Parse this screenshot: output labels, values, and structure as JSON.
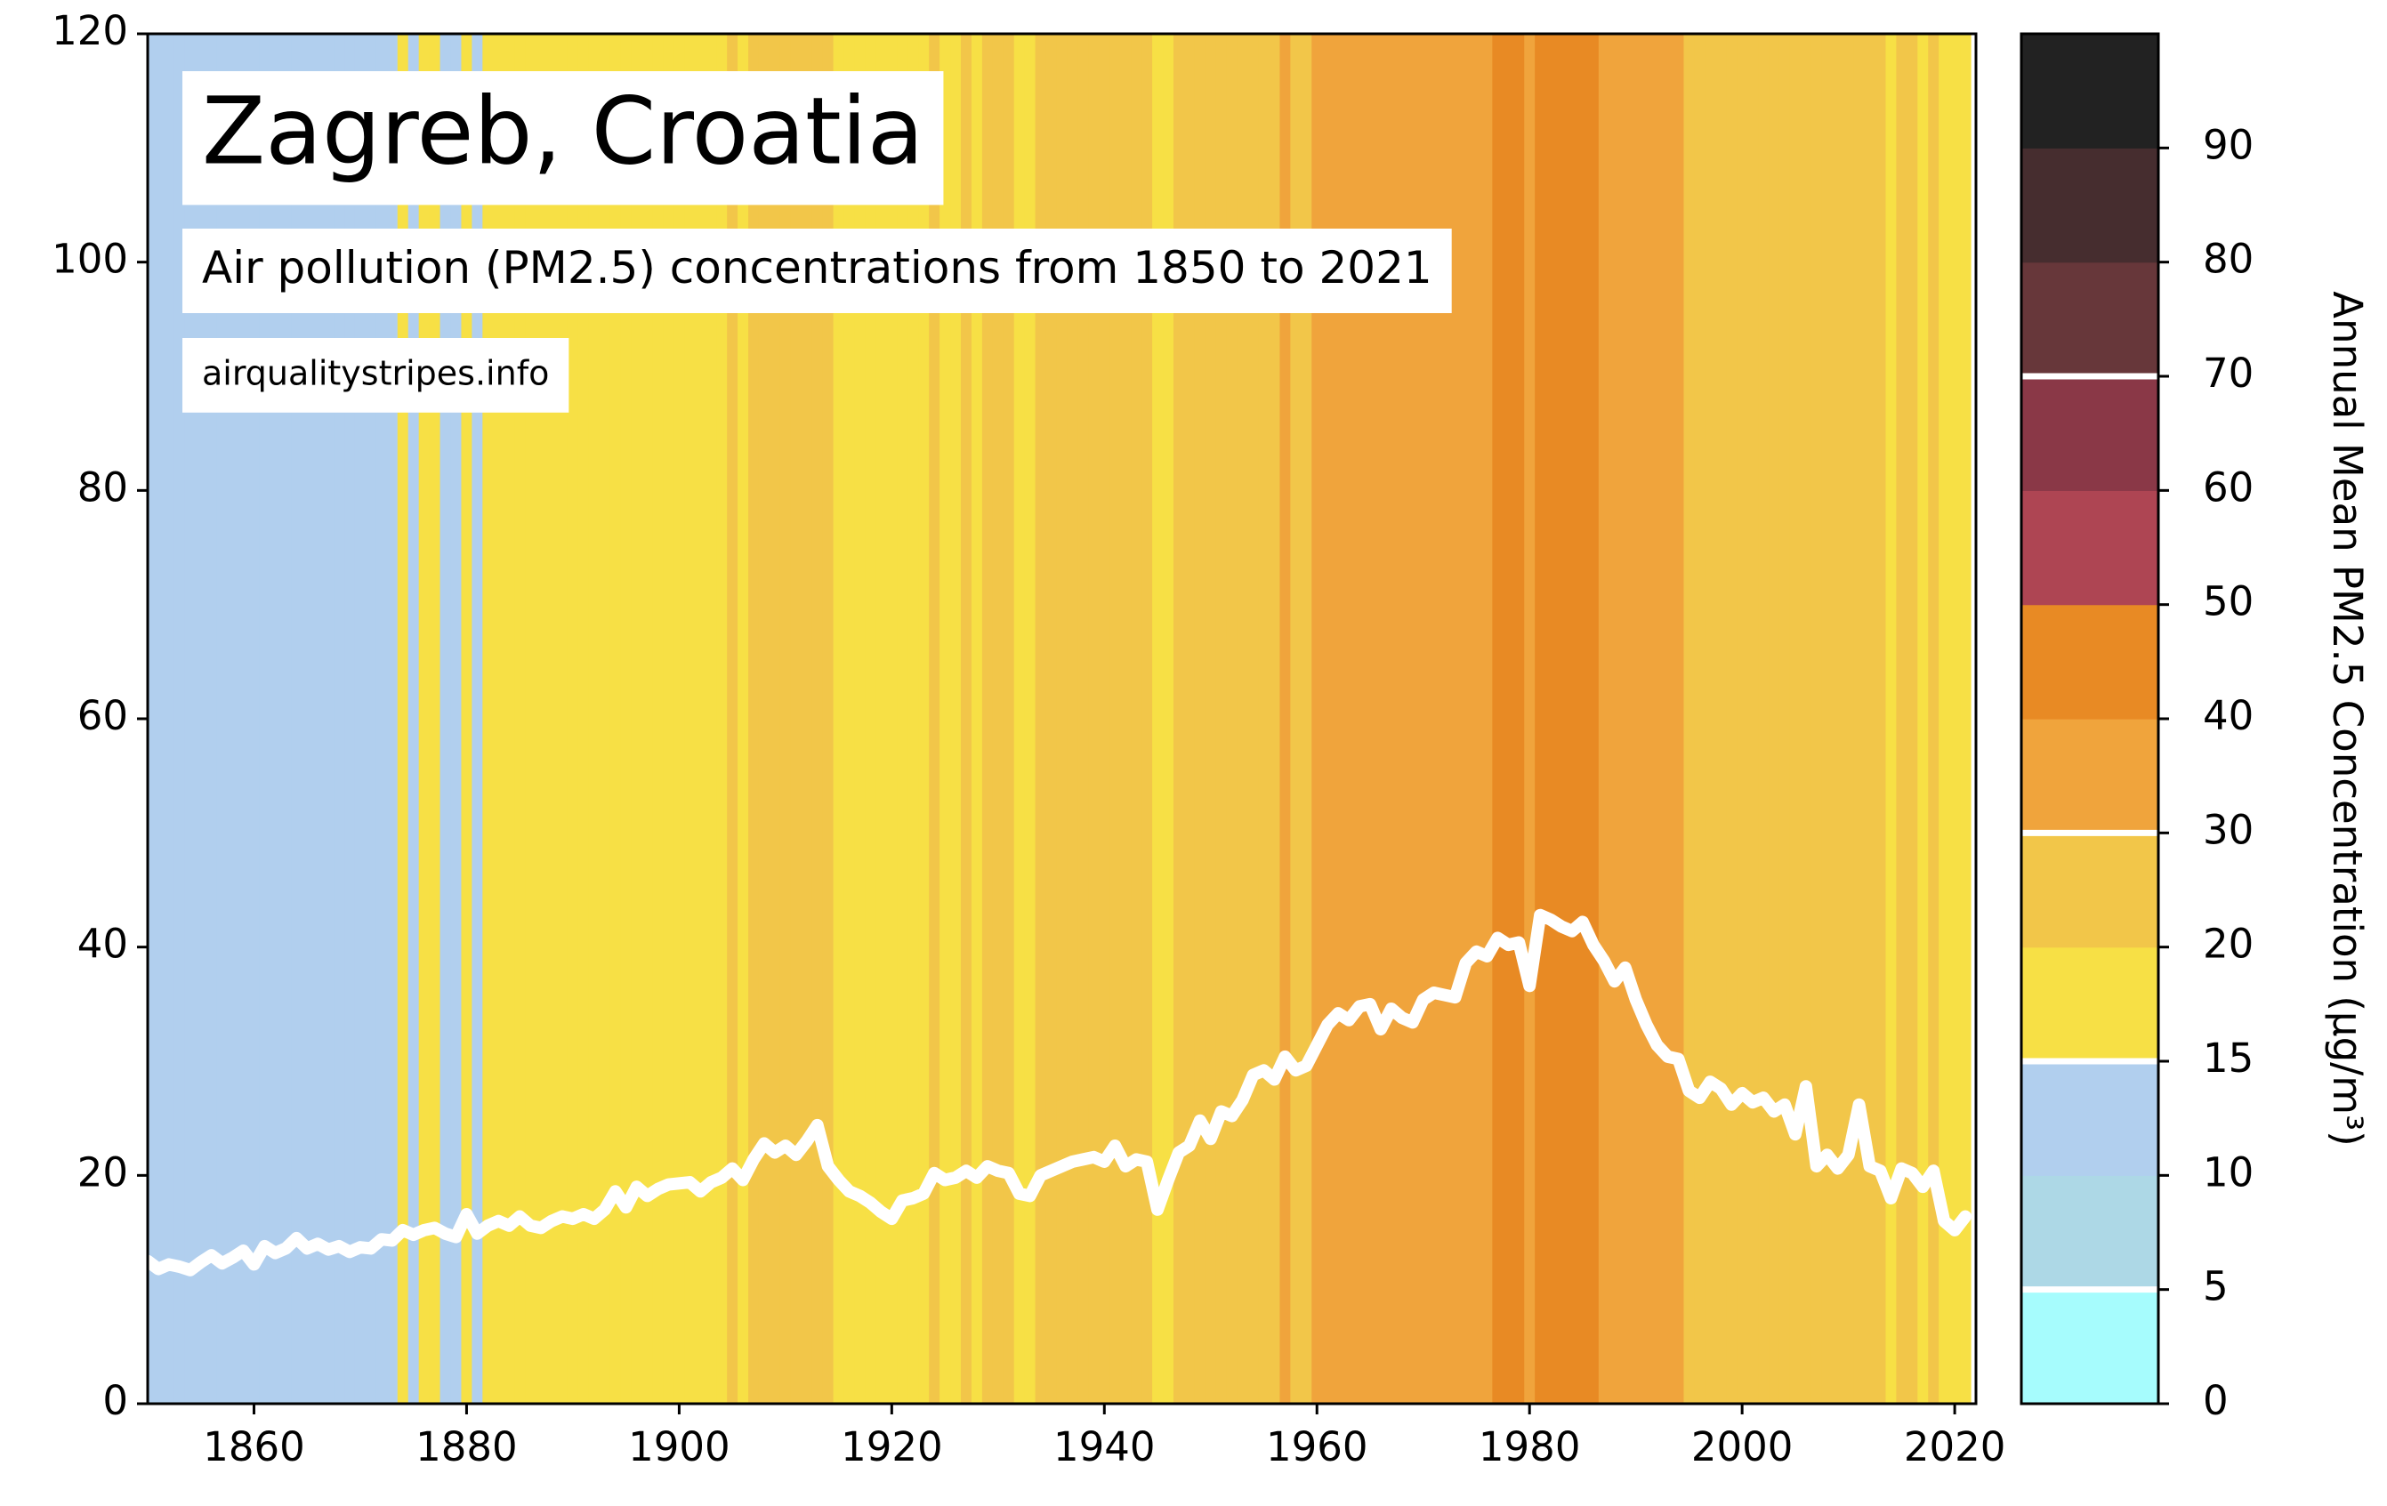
{
  "chart_data": {
    "type": "stripes-line",
    "title": "Zagreb, Croatia",
    "subtitle": "Air pollution (PM2.5) concentrations from 1850 to 2021",
    "source": "airqualitystripes.info",
    "line_color": "#ffffff",
    "x": [
      1850,
      1851,
      1852,
      1853,
      1854,
      1855,
      1856,
      1857,
      1858,
      1859,
      1860,
      1861,
      1862,
      1863,
      1864,
      1865,
      1866,
      1867,
      1868,
      1869,
      1870,
      1871,
      1872,
      1873,
      1874,
      1875,
      1876,
      1877,
      1878,
      1879,
      1880,
      1881,
      1882,
      1883,
      1884,
      1885,
      1886,
      1887,
      1888,
      1889,
      1890,
      1891,
      1892,
      1893,
      1894,
      1895,
      1896,
      1897,
      1898,
      1899,
      1900,
      1901,
      1902,
      1903,
      1904,
      1905,
      1906,
      1907,
      1908,
      1909,
      1910,
      1911,
      1912,
      1913,
      1914,
      1915,
      1916,
      1917,
      1918,
      1919,
      1920,
      1921,
      1922,
      1923,
      1924,
      1925,
      1926,
      1927,
      1928,
      1929,
      1930,
      1931,
      1932,
      1933,
      1934,
      1935,
      1936,
      1937,
      1938,
      1939,
      1940,
      1941,
      1942,
      1943,
      1944,
      1945,
      1946,
      1947,
      1948,
      1949,
      1950,
      1951,
      1952,
      1953,
      1954,
      1955,
      1956,
      1957,
      1958,
      1959,
      1960,
      1961,
      1962,
      1963,
      1964,
      1965,
      1966,
      1967,
      1968,
      1969,
      1970,
      1971,
      1972,
      1973,
      1974,
      1975,
      1976,
      1977,
      1978,
      1979,
      1980,
      1981,
      1982,
      1983,
      1984,
      1985,
      1986,
      1987,
      1988,
      1989,
      1990,
      1991,
      1992,
      1993,
      1994,
      1995,
      1996,
      1997,
      1998,
      1999,
      2000,
      2001,
      2002,
      2003,
      2004,
      2005,
      2006,
      2007,
      2008,
      2009,
      2010,
      2011,
      2012,
      2013,
      2014,
      2015,
      2016,
      2017,
      2018,
      2019,
      2020,
      2021
    ],
    "values": [
      12.5,
      11.8,
      12.2,
      12.0,
      11.7,
      12.4,
      13.0,
      12.3,
      12.8,
      13.4,
      12.2,
      13.8,
      13.2,
      13.6,
      14.5,
      13.6,
      14.0,
      13.5,
      13.8,
      13.3,
      13.7,
      13.6,
      14.4,
      14.3,
      15.2,
      14.8,
      15.2,
      15.4,
      14.9,
      14.6,
      16.6,
      14.9,
      15.6,
      16.0,
      15.6,
      16.4,
      15.6,
      15.4,
      16.0,
      16.4,
      16.2,
      16.6,
      16.2,
      17.0,
      18.6,
      17.2,
      19.0,
      18.2,
      18.8,
      19.2,
      19.3,
      19.4,
      18.6,
      19.4,
      19.8,
      20.6,
      19.6,
      21.4,
      22.8,
      22.0,
      22.6,
      21.8,
      23.0,
      24.4,
      20.8,
      19.6,
      18.6,
      18.2,
      17.6,
      16.8,
      16.2,
      17.8,
      18.0,
      18.4,
      20.2,
      19.6,
      19.8,
      20.4,
      19.8,
      20.8,
      20.4,
      20.2,
      18.4,
      18.2,
      20.0,
      20.4,
      20.8,
      21.2,
      21.4,
      21.6,
      21.2,
      22.6,
      20.8,
      21.4,
      21.2,
      17.0,
      19.6,
      22.0,
      22.6,
      24.8,
      23.2,
      25.6,
      25.2,
      26.6,
      28.8,
      29.2,
      28.4,
      30.4,
      29.2,
      29.6,
      31.4,
      33.2,
      34.2,
      33.6,
      34.8,
      35.0,
      32.8,
      34.6,
      33.8,
      33.4,
      35.4,
      36.0,
      35.8,
      35.6,
      38.6,
      39.6,
      39.2,
      40.8,
      40.2,
      40.4,
      36.6,
      42.8,
      42.4,
      41.8,
      41.4,
      42.2,
      40.2,
      38.8,
      37.0,
      38.2,
      35.4,
      33.2,
      31.4,
      30.4,
      30.2,
      27.4,
      26.8,
      28.2,
      27.6,
      26.2,
      27.2,
      26.4,
      26.8,
      25.6,
      26.2,
      23.6,
      27.8,
      20.8,
      21.8,
      20.6,
      21.8,
      26.2,
      20.8,
      20.4,
      18.0,
      20.6,
      20.2,
      19.0,
      20.4,
      16.0,
      15.2,
      16.4
    ],
    "xlim": [
      1850,
      2022
    ],
    "xticks": [
      1860,
      1880,
      1900,
      1920,
      1940,
      1960,
      1980,
      2000,
      2020
    ],
    "ylim": [
      0,
      120
    ],
    "yticks": [
      0,
      20,
      40,
      60,
      80,
      100,
      120
    ],
    "colorbar": {
      "label": "Annual Mean PM2.5 Concentration (µg/m³)",
      "bounds": [
        0,
        5,
        10,
        15,
        20,
        30,
        40,
        50,
        60,
        70,
        80,
        90,
        100
      ],
      "colors": [
        "#a6fcfd",
        "#add8e6",
        "#b1cfee",
        "#f7e045",
        "#f2c649",
        "#f0a43c",
        "#e88a24",
        "#ae4553",
        "#8a3847",
        "#67373a",
        "#462d2f",
        "#222222"
      ],
      "ticks": [
        0,
        5,
        10,
        15,
        20,
        30,
        40,
        50,
        60,
        70,
        80,
        90
      ],
      "guideline_lines": [
        5,
        15,
        30,
        70
      ]
    }
  }
}
